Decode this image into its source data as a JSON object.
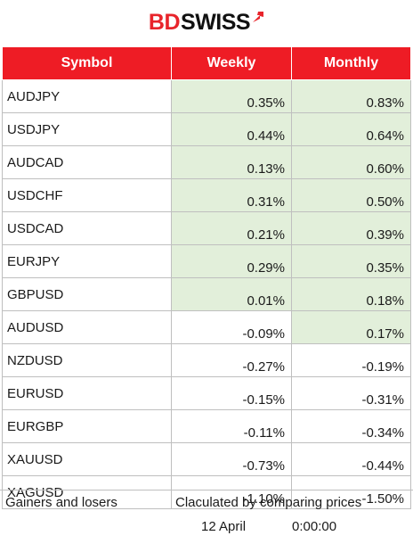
{
  "brand": {
    "part1": "BD",
    "part2": "SWISS"
  },
  "colors": {
    "header_red": "#ee1c25",
    "positive_fill": "#e2efda"
  },
  "table": {
    "headers": {
      "symbol": "Symbol",
      "weekly": "Weekly",
      "monthly": "Monthly"
    },
    "rows": [
      {
        "symbol": "AUDJPY",
        "weekly": "0.35%",
        "monthly": "0.83%"
      },
      {
        "symbol": "USDJPY",
        "weekly": "0.44%",
        "monthly": "0.64%"
      },
      {
        "symbol": "AUDCAD",
        "weekly": "0.13%",
        "monthly": "0.60%"
      },
      {
        "symbol": "USDCHF",
        "weekly": "0.31%",
        "monthly": "0.50%"
      },
      {
        "symbol": "USDCAD",
        "weekly": "0.21%",
        "monthly": "0.39%"
      },
      {
        "symbol": "EURJPY",
        "weekly": "0.29%",
        "monthly": "0.35%"
      },
      {
        "symbol": "GBPUSD",
        "weekly": "0.01%",
        "monthly": "0.18%"
      },
      {
        "symbol": "AUDUSD",
        "weekly": "-0.09%",
        "monthly": "0.17%"
      },
      {
        "symbol": "NZDUSD",
        "weekly": "-0.27%",
        "monthly": "-0.19%"
      },
      {
        "symbol": "EURUSD",
        "weekly": "-0.15%",
        "monthly": "-0.31%"
      },
      {
        "symbol": "EURGBP",
        "weekly": "-0.11%",
        "monthly": "-0.34%"
      },
      {
        "symbol": "XAUUSD",
        "weekly": "-0.73%",
        "monthly": "-0.44%"
      },
      {
        "symbol": "XAGUSD",
        "weekly": "-1.10%",
        "monthly": "-1.50%"
      }
    ]
  },
  "footer": {
    "gainers_losers": "Gainers and losers",
    "calculated": "Claculated by comparing prices",
    "date": "12 April",
    "time": "0:00:00"
  }
}
